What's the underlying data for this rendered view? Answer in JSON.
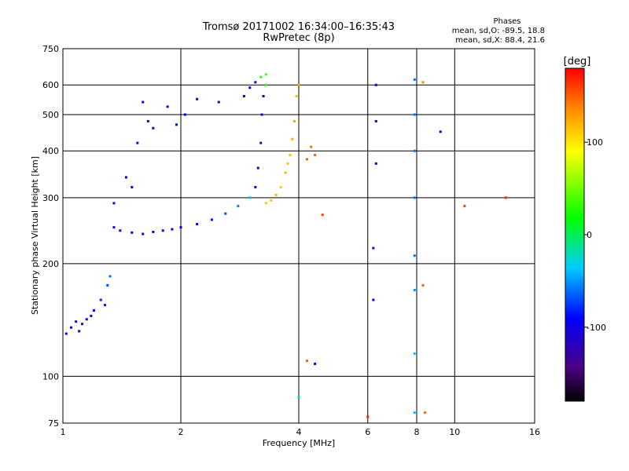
{
  "title": "Tromsø 20171002 16:34:00–16:35:43",
  "subtitle": "RwPretec (8p)",
  "phases_box": {
    "heading": "Phases",
    "line_o": "mean, sd,O: -89.5, 18.8",
    "line_x": "mean, sd,X:  88.4, 21.6"
  },
  "colorbar": {
    "unit": "[deg]",
    "range": [
      -180,
      180
    ],
    "ticks": [
      {
        "value": 100,
        "label": "100"
      },
      {
        "value": 0,
        "label": "0"
      },
      {
        "value": -100,
        "label": "-100"
      }
    ]
  },
  "chart_data": {
    "type": "scatter",
    "xlabel": "Frequency [MHz]",
    "ylabel": "Stationary phase Virtual Height [km]",
    "x_scale": "log",
    "y_scale": "log",
    "xlim": [
      1,
      16
    ],
    "ylim": [
      75,
      750
    ],
    "x_ticks": [
      {
        "value": 1,
        "label": "1"
      },
      {
        "value": 2,
        "label": "2"
      },
      {
        "value": 4,
        "label": "4"
      },
      {
        "value": 6,
        "label": "6"
      },
      {
        "value": 8,
        "label": "8"
      },
      {
        "value": 10,
        "label": "10"
      },
      {
        "value": 16,
        "label": "16"
      }
    ],
    "y_ticks": [
      {
        "value": 75,
        "label": "75"
      },
      {
        "value": 100,
        "label": "100"
      },
      {
        "value": 200,
        "label": "200"
      },
      {
        "value": 300,
        "label": "300"
      },
      {
        "value": 400,
        "label": "400"
      },
      {
        "value": 500,
        "label": "500"
      },
      {
        "value": 600,
        "label": "600"
      },
      {
        "value": 750,
        "label": "750"
      }
    ],
    "grid": true,
    "color_by": "phase [deg]",
    "series": [
      {
        "points": [
          [
            1.02,
            130,
            -105
          ],
          [
            1.05,
            135,
            -95
          ],
          [
            1.08,
            140,
            -100
          ],
          [
            1.12,
            138,
            -85
          ],
          [
            1.15,
            142,
            -110
          ],
          [
            1.2,
            150,
            -90
          ],
          [
            1.25,
            160,
            -80
          ],
          [
            1.3,
            175,
            -70
          ],
          [
            1.32,
            185,
            -60
          ],
          [
            1.1,
            132,
            -100
          ],
          [
            1.18,
            145,
            -95
          ],
          [
            1.28,
            155,
            -85
          ],
          [
            1.35,
            250,
            -105
          ],
          [
            1.4,
            245,
            -100
          ],
          [
            1.5,
            242,
            -110
          ],
          [
            1.6,
            240,
            -100
          ],
          [
            1.7,
            243,
            -95
          ],
          [
            1.8,
            245,
            -105
          ],
          [
            1.9,
            247,
            -100
          ],
          [
            2.0,
            250,
            -95
          ],
          [
            2.2,
            255,
            -90
          ],
          [
            2.4,
            262,
            -85
          ],
          [
            2.6,
            272,
            -70
          ],
          [
            2.8,
            285,
            -55
          ],
          [
            3.0,
            300,
            -40
          ],
          [
            3.1,
            320,
            -100
          ],
          [
            3.15,
            360,
            -100
          ],
          [
            3.2,
            420,
            -105
          ],
          [
            3.22,
            500,
            -100
          ],
          [
            3.25,
            560,
            -95
          ],
          [
            3.3,
            600,
            30
          ],
          [
            3.3,
            290,
            110
          ],
          [
            3.4,
            295,
            115
          ],
          [
            3.5,
            305,
            120
          ],
          [
            3.6,
            320,
            110
          ],
          [
            3.7,
            350,
            120
          ],
          [
            3.8,
            390,
            115
          ],
          [
            3.85,
            430,
            120
          ],
          [
            3.9,
            480,
            125
          ],
          [
            3.95,
            560,
            115
          ],
          [
            4.0,
            600,
            130
          ],
          [
            3.75,
            370,
            115
          ],
          [
            1.35,
            290,
            -95
          ],
          [
            1.45,
            340,
            -90
          ],
          [
            1.55,
            420,
            -100
          ],
          [
            1.6,
            540,
            -95
          ],
          [
            1.7,
            460,
            -100
          ],
          [
            1.85,
            525,
            -100
          ],
          [
            2.05,
            500,
            -90
          ],
          [
            2.2,
            550,
            -100
          ],
          [
            1.5,
            320,
            -95
          ],
          [
            1.65,
            480,
            -105
          ],
          [
            1.95,
            470,
            -90
          ],
          [
            2.5,
            540,
            -95
          ],
          [
            2.9,
            560,
            -90
          ],
          [
            3.0,
            590,
            -95
          ],
          [
            3.1,
            610,
            -100
          ],
          [
            3.2,
            630,
            30
          ],
          [
            3.3,
            640,
            40
          ],
          [
            4.2,
            380,
            150
          ],
          [
            4.3,
            410,
            145
          ],
          [
            4.4,
            390,
            150
          ],
          [
            6.2,
            220,
            -100
          ],
          [
            6.2,
            160,
            -95
          ],
          [
            6.3,
            370,
            -95
          ],
          [
            6.3,
            480,
            -90
          ],
          [
            6.3,
            600,
            -90
          ],
          [
            7.9,
            620,
            -60
          ],
          [
            7.9,
            500,
            -60
          ],
          [
            7.9,
            400,
            -60
          ],
          [
            7.9,
            300,
            -60
          ],
          [
            7.9,
            210,
            -60
          ],
          [
            7.9,
            170,
            -50
          ],
          [
            7.9,
            115,
            -40
          ],
          [
            7.9,
            80,
            -40
          ],
          [
            4.2,
            110,
            150
          ],
          [
            4.4,
            108,
            -100
          ],
          [
            4.6,
            270,
            160
          ],
          [
            4.0,
            88,
            -20
          ],
          [
            6.0,
            78,
            170
          ],
          [
            8.3,
            610,
            140
          ],
          [
            8.3,
            175,
            150
          ],
          [
            8.4,
            80,
            150
          ],
          [
            9.2,
            450,
            -100
          ],
          [
            10.6,
            285,
            160
          ],
          [
            13.5,
            300,
            170
          ]
        ]
      }
    ]
  }
}
